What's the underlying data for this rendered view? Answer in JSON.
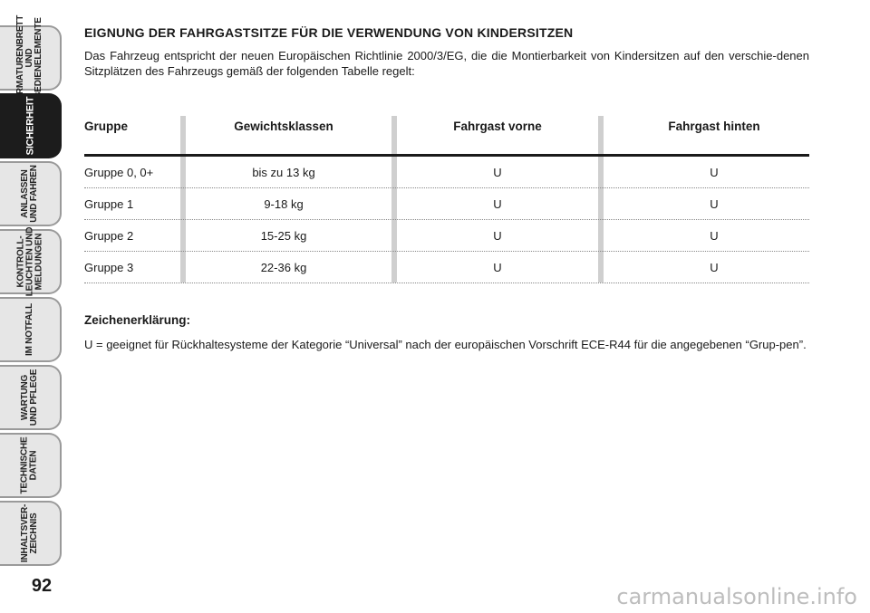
{
  "side_tabs": [
    {
      "label": "ARMATURENBRETT\nUND\nBEDIENELEMENTE",
      "active": false
    },
    {
      "label": "SICHERHEIT",
      "active": true
    },
    {
      "label": "ANLASSEN\nUND FAHREN",
      "active": false
    },
    {
      "label": "KONTROLL-\nLEUCHTEN UND\nMELDUNGEN",
      "active": false
    },
    {
      "label": "IM NOTFALL",
      "active": false
    },
    {
      "label": "WARTUNG\nUND PFLEGE",
      "active": false
    },
    {
      "label": "TECHNISCHE\nDATEN",
      "active": false
    },
    {
      "label": "INHALTSVER-\nZEICHNIS",
      "active": false
    }
  ],
  "page_number": "92",
  "heading": "EIGNUNG DER FAHRGASTSITZE FÜR DIE VERWENDUNG VON KINDERSITZEN",
  "intro": "Das Fahrzeug   entspricht der neuen Europäischen Richtlinie 2000/3/EG, die die Montierbarkeit von Kindersitzen auf den verschie-denen Sitzplätzen des Fahrzeugs gemäß der folgenden Tabelle regelt:",
  "table": {
    "headers": [
      "Gruppe",
      "Gewichtsklassen",
      "Fahrgast vorne",
      "Fahrgast hinten"
    ],
    "rows": [
      [
        "Gruppe 0, 0+",
        "bis zu 13 kg",
        "U",
        "U"
      ],
      [
        "Gruppe 1",
        "9-18 kg",
        "U",
        "U"
      ],
      [
        "Gruppe 2",
        "15-25 kg",
        "U",
        "U"
      ],
      [
        "Gruppe 3",
        "22-36 kg",
        "U",
        "U"
      ]
    ]
  },
  "legend": {
    "title": "Zeichenerklärung:",
    "text": "U = geeignet für Rückhaltesysteme der Kategorie “Universal” nach der europäischen Vorschrift ECE-R44 für die angegebenen “Grup-pen”."
  },
  "watermark": "carmanualsonline.info"
}
